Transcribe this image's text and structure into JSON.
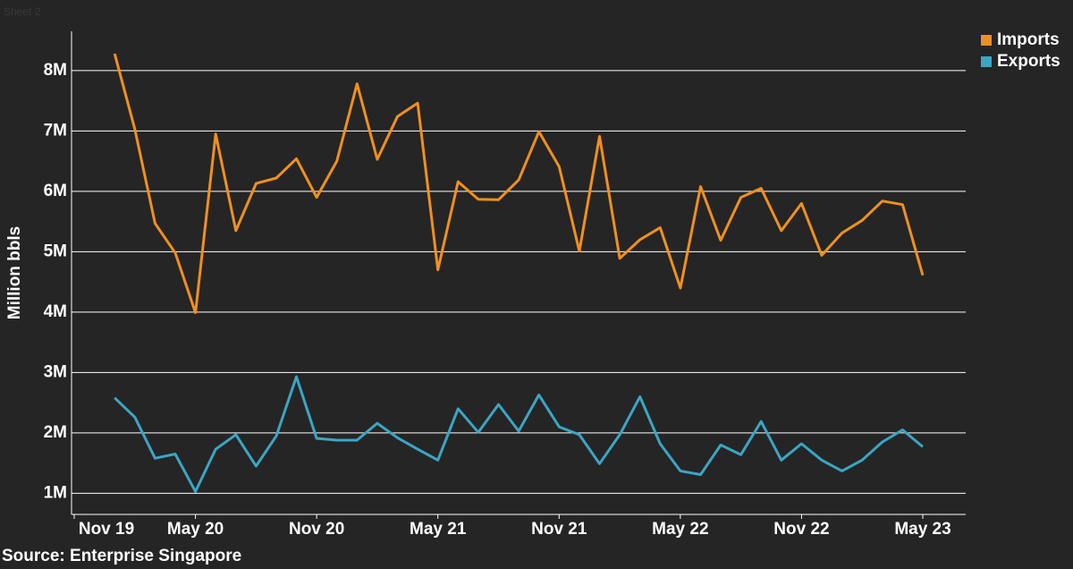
{
  "sheet": "Sheet 2",
  "chart_data": {
    "type": "line",
    "y_axis_label": "Million bbls",
    "source": "Source: Enterprise Singapore",
    "categories": [
      "Nov 19",
      null,
      null,
      null,
      null,
      null,
      "May 20",
      null,
      null,
      null,
      null,
      null,
      "Nov 20",
      null,
      null,
      null,
      null,
      null,
      "May 21",
      null,
      null,
      null,
      null,
      null,
      "Nov 21",
      null,
      null,
      null,
      null,
      null,
      "May 22",
      null,
      null,
      null,
      null,
      null,
      "Nov 22",
      null,
      null,
      null,
      null,
      null,
      "May 23"
    ],
    "series": [
      {
        "name": "Imports",
        "color": "#f0901c",
        "values": [
          null,
          null,
          8.28,
          7.03,
          5.47,
          4.98,
          3.99,
          6.95,
          5.35,
          6.13,
          6.22,
          6.54,
          5.9,
          6.5,
          7.78,
          6.53,
          7.24,
          7.46,
          4.7,
          6.16,
          5.87,
          5.86,
          6.19,
          6.99,
          6.41,
          5.01,
          6.91,
          4.89,
          5.2,
          5.4,
          4.4,
          6.08,
          5.19,
          5.9,
          6.05,
          5.35,
          5.8,
          4.94,
          5.31,
          5.52,
          5.84,
          5.78,
          4.61
        ]
      },
      {
        "name": "Exports",
        "color": "#3aa6c4",
        "values": [
          null,
          null,
          2.58,
          2.26,
          1.58,
          1.65,
          1.03,
          1.73,
          1.97,
          1.45,
          1.95,
          2.93,
          1.91,
          1.88,
          1.88,
          2.16,
          1.92,
          1.73,
          1.55,
          2.4,
          2.01,
          2.47,
          2.03,
          2.63,
          2.1,
          1.97,
          1.49,
          1.97,
          2.6,
          1.82,
          1.37,
          1.31,
          1.8,
          1.64,
          2.19,
          1.55,
          1.82,
          1.55,
          1.37,
          1.55,
          1.85,
          2.05,
          1.77
        ]
      }
    ],
    "ylim": [
      0.65,
      8.65
    ],
    "yticks": [
      {
        "value": 1,
        "label": "1M"
      },
      {
        "value": 2,
        "label": "2M"
      },
      {
        "value": 3,
        "label": "3M"
      },
      {
        "value": 4,
        "label": "4M"
      },
      {
        "value": 5,
        "label": "5M"
      },
      {
        "value": 6,
        "label": "6M"
      },
      {
        "value": 7,
        "label": "7M"
      },
      {
        "value": 8,
        "label": "8M"
      }
    ],
    "grid": true,
    "legend": "top-right"
  }
}
